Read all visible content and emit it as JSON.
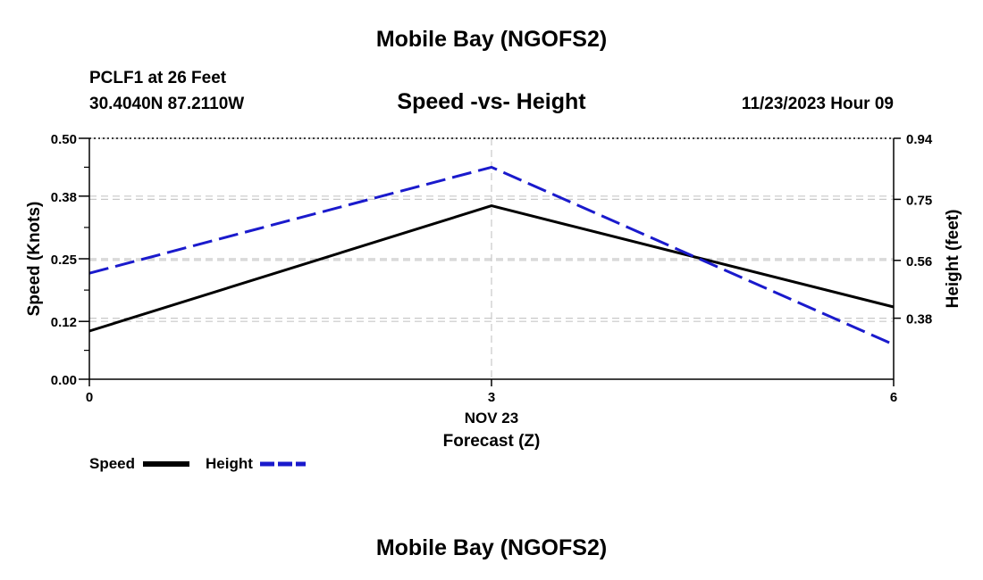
{
  "header": {
    "title": "Mobile Bay (NGOFS2)",
    "station": "PCLF1 at 26 Feet",
    "coords": "30.4040N  87.2110W",
    "subtitle": "Speed -vs- Height",
    "datetime": "11/23/2023 Hour 09"
  },
  "footer": {
    "title": "Mobile Bay (NGOFS2)"
  },
  "colors": {
    "speed": "#000000",
    "height": "#1a1acc",
    "grid": "#c8c8c8"
  },
  "chart_data": {
    "type": "line",
    "title": "Speed -vs- Height",
    "x": [
      0,
      3,
      6
    ],
    "xticks": [
      "0",
      "3",
      "6"
    ],
    "xsublabel": "NOV 23",
    "xlabel": "Forecast (Z)",
    "xlim": [
      0,
      6
    ],
    "ylabel": "Speed (Knots)",
    "ylim": [
      0.0,
      0.5
    ],
    "yticks": [
      "0.00",
      "0.12",
      "0.25",
      "0.38",
      "0.50"
    ],
    "ylabel_right": "Height (feet)",
    "ylim_right": [
      0.19,
      0.94
    ],
    "yticks_right": [
      "0.38",
      "0.56",
      "0.75",
      "0.94"
    ],
    "series": [
      {
        "name": "Speed",
        "axis": "left",
        "style": "solid",
        "values": [
          0.1,
          0.36,
          0.15
        ]
      },
      {
        "name": "Height",
        "axis": "right",
        "style": "dashed",
        "values": [
          0.52,
          0.85,
          0.298
        ]
      }
    ],
    "legend": [
      "Speed",
      "Height"
    ],
    "legend_position": "bottom-left"
  }
}
